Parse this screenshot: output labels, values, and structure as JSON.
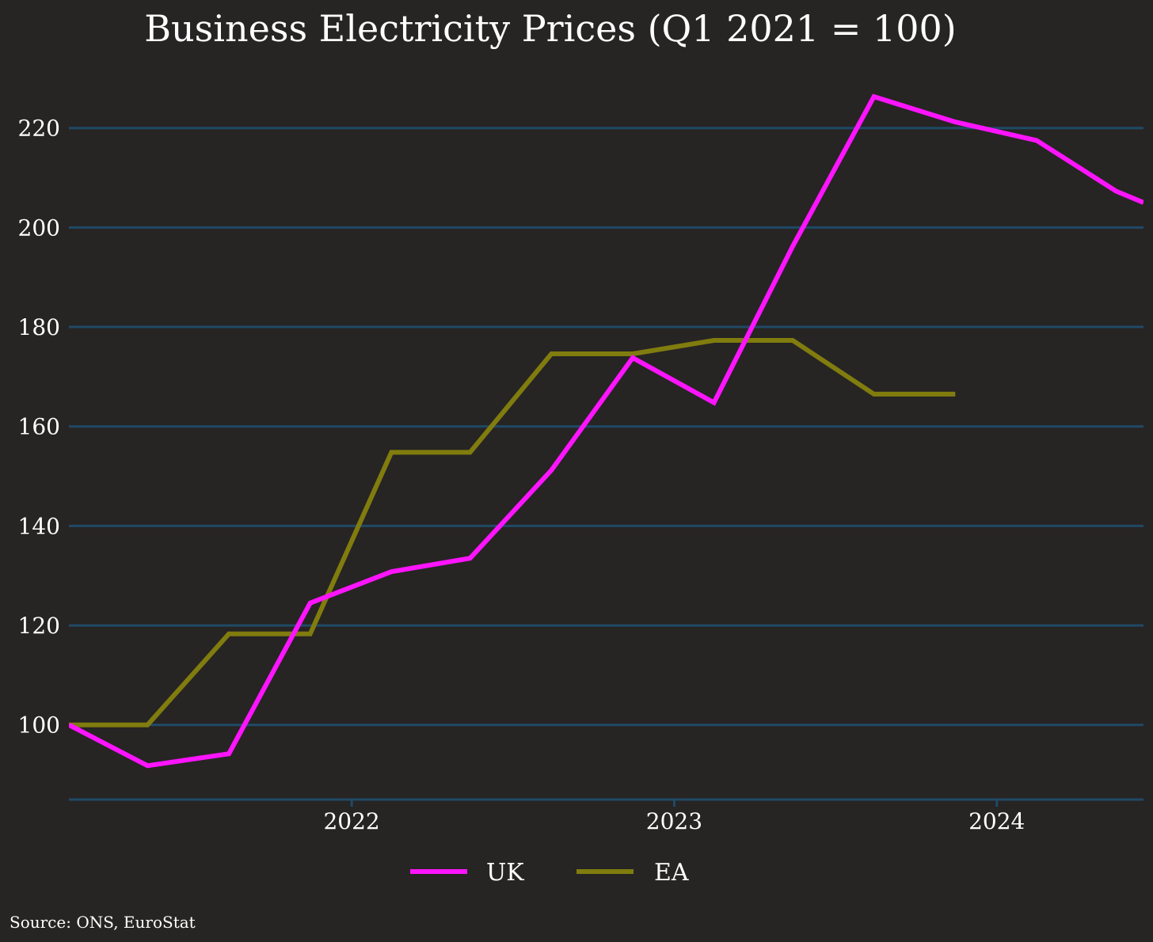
{
  "chart_data": {
    "type": "line",
    "title": "Business Electricity Prices (Q1 2021 = 100)",
    "xlabel": "",
    "ylabel": "",
    "x_ticks": [
      "2022",
      "2023",
      "2024"
    ],
    "y_ticks": [
      "100",
      "120",
      "140",
      "160",
      "180",
      "200",
      "220"
    ],
    "ylim": [
      85,
      233
    ],
    "xlim": [
      "2021-02-15",
      "2024-06-15"
    ],
    "grid": true,
    "legend_position": "bottom-center",
    "series": [
      {
        "name": "UK",
        "color": "#ff14ff",
        "x": [
          "2021-02-15",
          "2021-05-15",
          "2021-08-15",
          "2021-11-15",
          "2022-02-15",
          "2022-05-15",
          "2022-08-15",
          "2022-11-15",
          "2023-02-15",
          "2023-05-15",
          "2023-08-15",
          "2023-11-15",
          "2024-02-15",
          "2024-05-15",
          "2024-06-15"
        ],
        "values": [
          100,
          91.8,
          94.2,
          124.5,
          130.8,
          133.5,
          151.2,
          173.8,
          164.8,
          196.2,
          226.3,
          221.2,
          217.5,
          207.3,
          205
        ]
      },
      {
        "name": "EA",
        "color": "#807c0e",
        "x": [
          "2021-02-15",
          "2021-05-15",
          "2021-08-15",
          "2021-11-15",
          "2022-02-15",
          "2022-05-15",
          "2022-08-15",
          "2022-11-15",
          "2023-02-15",
          "2023-05-15",
          "2023-08-15",
          "2023-11-15"
        ],
        "values": [
          100,
          100,
          118.3,
          118.3,
          154.8,
          154.8,
          174.6,
          174.6,
          177.3,
          177.3,
          166.5,
          166.5
        ]
      }
    ]
  },
  "source": "Source: ONS, EuroStat",
  "colors": {
    "background": "#272424",
    "grid": "#1f4a66",
    "text": "#ffffff"
  }
}
